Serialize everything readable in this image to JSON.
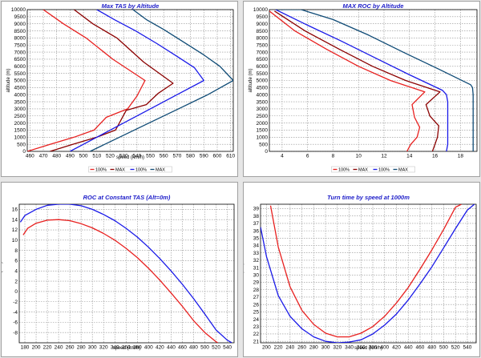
{
  "colors": {
    "red": "#e8201f",
    "darkred": "#8b0000",
    "blue": "#1a1ae8",
    "teal": "#0e4a75",
    "grid": "#909090",
    "title": "#1c1cc8"
  },
  "chart_data": [
    {
      "type": "line",
      "title": "Max TAS by Altitude",
      "xlabel": "speed (km/h)",
      "ylabel": "altitude (m)",
      "xlim": [
        458,
        612
      ],
      "ylim": [
        0,
        10000
      ],
      "xticks": [
        460,
        470,
        480,
        490,
        500,
        510,
        520,
        530,
        540,
        550,
        560,
        570,
        580,
        590,
        600,
        610
      ],
      "yticks": [
        0,
        500,
        1000,
        1500,
        2000,
        2500,
        3000,
        3500,
        4000,
        4500,
        5000,
        5500,
        6000,
        6500,
        7000,
        7500,
        8000,
        8500,
        9000,
        9500,
        10000
      ],
      "legend": [
        "100%",
        "MAX",
        "100%",
        "MAX"
      ],
      "series": [
        {
          "name": "100%",
          "color": "red",
          "x": [
            458,
            475,
            493,
            508,
            517,
            533,
            540,
            546,
            522,
            502,
            485,
            470
          ],
          "y": [
            0,
            500,
            1000,
            1500,
            2400,
            3000,
            3900,
            5000,
            6500,
            8000,
            9000,
            10000
          ]
        },
        {
          "name": "MAX",
          "color": "darkred",
          "x": [
            475,
            492,
            510,
            524,
            532,
            547,
            556,
            567,
            545,
            525,
            507,
            493
          ],
          "y": [
            0,
            500,
            1000,
            1500,
            2900,
            3300,
            4100,
            4800,
            6300,
            8000,
            9000,
            10000
          ]
        },
        {
          "name": "100%",
          "color": "blue",
          "x": [
            490,
            510,
            530,
            550,
            570,
            590,
            583,
            570,
            555,
            539,
            523,
            510
          ],
          "y": [
            0,
            1000,
            2000,
            3000,
            4000,
            5000,
            5900,
            6700,
            7600,
            8500,
            9300,
            10000
          ]
        },
        {
          "name": "MAX",
          "color": "teal",
          "x": [
            505,
            527,
            549,
            571,
            593,
            612,
            602,
            590,
            575,
            560,
            547,
            537
          ],
          "y": [
            0,
            1000,
            2000,
            3000,
            4000,
            5000,
            6000,
            6800,
            7700,
            8600,
            9300,
            10000
          ]
        }
      ]
    },
    {
      "type": "line",
      "title": "MAX ROC by Altitude",
      "xlabel": "",
      "ylabel": "altitude (m)",
      "xlim": [
        3,
        19.3
      ],
      "ylim": [
        0,
        10000
      ],
      "xticks": [
        4,
        6,
        8,
        10,
        12,
        14,
        16,
        18
      ],
      "yticks": [
        0,
        500,
        1000,
        1500,
        2000,
        2500,
        3000,
        3500,
        4000,
        4500,
        5000,
        5500,
        6000,
        6500,
        7000,
        7500,
        8000,
        8500,
        9000,
        9500,
        10000
      ],
      "legend": [
        "100%",
        "MAX",
        "100%",
        "MAX"
      ],
      "series": [
        {
          "name": "100%",
          "color": "red",
          "x": [
            13.8,
            14.1,
            14.6,
            14.8,
            14.4,
            14.2,
            15.2,
            12.5,
            10.0,
            7.5,
            5.0,
            3.0
          ],
          "y": [
            0,
            500,
            1000,
            1700,
            2400,
            3300,
            4200,
            5000,
            6000,
            7200,
            8500,
            9900
          ]
        },
        {
          "name": "MAX",
          "color": "darkred",
          "x": [
            15.8,
            16.0,
            16.2,
            16.3,
            15.6,
            15.3,
            16.4,
            13.7,
            11.1,
            8.5,
            5.8,
            3.4
          ],
          "y": [
            0,
            500,
            1000,
            1800,
            2500,
            3300,
            4200,
            5000,
            6000,
            7200,
            8500,
            9900
          ]
        },
        {
          "name": "100%",
          "color": "blue",
          "x": [
            16.9,
            17.0,
            17.0,
            17.0,
            17.0,
            17.0,
            16.9,
            16.6,
            14.0,
            11.3,
            8.6,
            6.0,
            3.5
          ],
          "y": [
            0,
            500,
            1000,
            2000,
            3000,
            3500,
            4000,
            4300,
            5400,
            6600,
            7800,
            8900,
            10000
          ]
        },
        {
          "name": "MAX",
          "color": "teal",
          "x": [
            19.0,
            19.0,
            19.0,
            19.0,
            19.0,
            18.95,
            18.8,
            16.3,
            13.5,
            10.8,
            8.0,
            5.5,
            3.6
          ],
          "y": [
            0,
            1000,
            2000,
            3000,
            4000,
            4500,
            4700,
            5800,
            7000,
            8200,
            9300,
            10000,
            10000
          ]
        }
      ]
    },
    {
      "type": "line",
      "title": "ROC at Constant TAS (Alt=0m)",
      "xlabel": "speed (km/h)",
      "ylabel": "climb (m/s)",
      "xlim": [
        170,
        552
      ],
      "ylim": [
        -10,
        17
      ],
      "xticks": [
        180,
        200,
        220,
        240,
        260,
        280,
        300,
        320,
        340,
        360,
        380,
        400,
        420,
        440,
        460,
        480,
        500,
        520,
        540
      ],
      "yticks": [
        -8,
        -6,
        -4,
        -2,
        0,
        2,
        4,
        6,
        8,
        10,
        12,
        14,
        16
      ],
      "series": [
        {
          "name": "red",
          "color": "red",
          "x": [
            177,
            185,
            200,
            220,
            240,
            260,
            280,
            300,
            320,
            340,
            360,
            380,
            400,
            420,
            440,
            460,
            480,
            500,
            520,
            523
          ],
          "y": [
            11.0,
            12.3,
            13.3,
            13.9,
            14.0,
            13.8,
            13.2,
            12.4,
            11.3,
            10.0,
            8.4,
            6.6,
            4.5,
            2.2,
            -0.3,
            -2.9,
            -5.7,
            -8.0,
            -9.8,
            -10
          ]
        },
        {
          "name": "blue",
          "color": "blue",
          "x": [
            172,
            180,
            200,
            220,
            240,
            260,
            280,
            300,
            320,
            340,
            360,
            380,
            400,
            420,
            440,
            460,
            480,
            500,
            520,
            540,
            548
          ],
          "y": [
            13.5,
            14.8,
            16.0,
            16.8,
            17.0,
            17.0,
            16.7,
            16.0,
            15.0,
            13.8,
            12.3,
            10.6,
            8.6,
            6.4,
            4.0,
            1.4,
            -1.4,
            -4.4,
            -7.5,
            -9.5,
            -10
          ]
        }
      ]
    },
    {
      "type": "line",
      "title": "Turn time by speed at 1000m",
      "xlabel": "speed (km/h)",
      "ylabel": "time (sec)",
      "xlim": [
        190,
        555
      ],
      "ylim": [
        20.8,
        39.6
      ],
      "xticks": [
        200,
        220,
        240,
        260,
        280,
        300,
        320,
        340,
        360,
        380,
        400,
        420,
        440,
        460,
        480,
        500,
        520,
        540
      ],
      "yticks": [
        21,
        22,
        23,
        24,
        25,
        26,
        27,
        28,
        29,
        30,
        31,
        32,
        33,
        34,
        35,
        36,
        37,
        38,
        39
      ],
      "series": [
        {
          "name": "red",
          "color": "red",
          "x": [
            207,
            220,
            240,
            260,
            280,
            300,
            320,
            340,
            360,
            380,
            400,
            420,
            440,
            460,
            480,
            500,
            520,
            530
          ],
          "y": [
            39.4,
            33.8,
            28.4,
            25.2,
            23.3,
            22.1,
            21.6,
            21.6,
            22.1,
            23.0,
            24.4,
            26.2,
            28.3,
            30.8,
            33.4,
            36.2,
            39.2,
            39.6
          ]
        },
        {
          "name": "blue",
          "color": "blue",
          "x": [
            190,
            200,
            220,
            240,
            260,
            280,
            300,
            320,
            340,
            360,
            380,
            400,
            420,
            440,
            460,
            480,
            500,
            520,
            540,
            552
          ],
          "y": [
            36.5,
            32.5,
            27.2,
            24.4,
            22.7,
            21.6,
            21.0,
            20.8,
            20.9,
            21.2,
            22.0,
            23.2,
            24.7,
            26.6,
            28.8,
            31.1,
            33.7,
            36.3,
            38.8,
            39.6
          ]
        }
      ]
    }
  ]
}
